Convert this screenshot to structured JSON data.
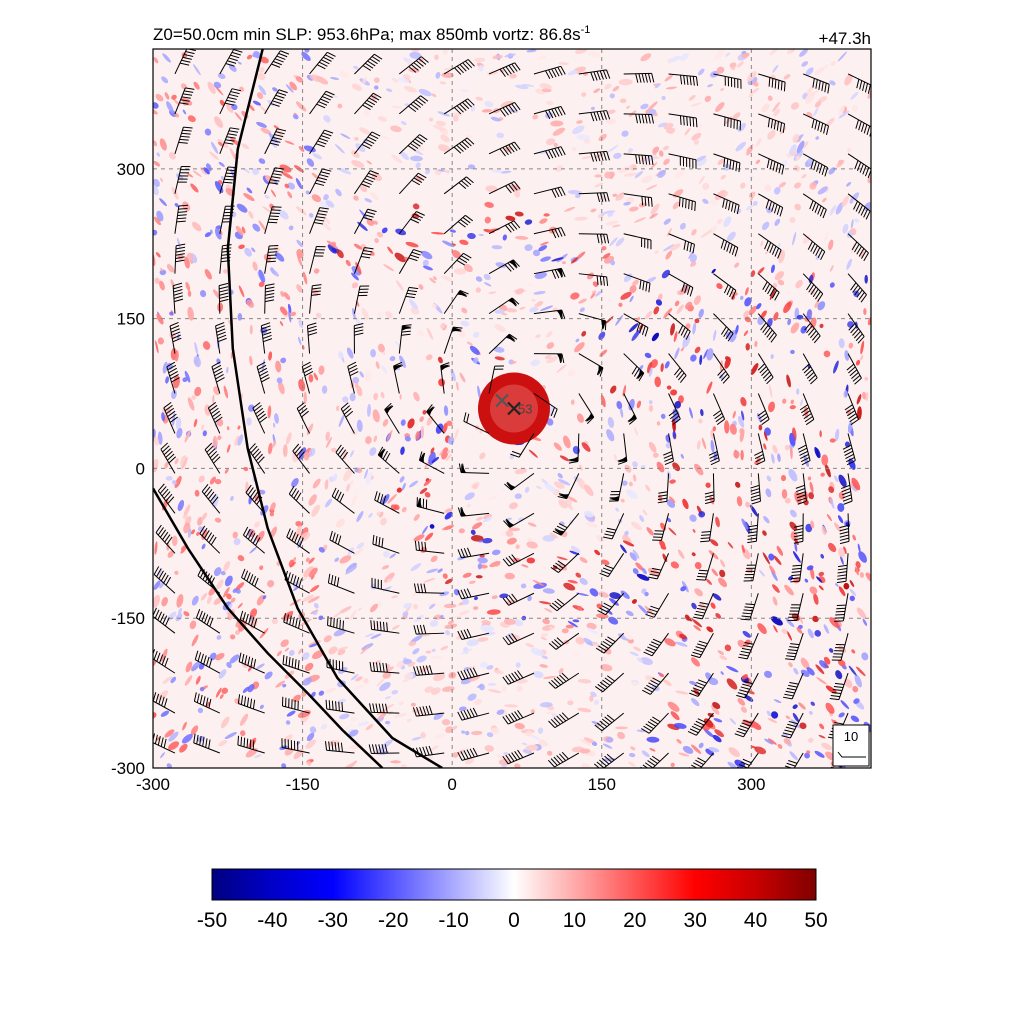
{
  "chart_data": [
    {
      "type": "heatmap",
      "title_left": "Z0=50.0cm  min SLP: 953.6hPa; max 850mb vortz:  86.8s",
      "title_left_sup": "-1",
      "title_right": "+47.3h",
      "xlim": [
        -300,
        420
      ],
      "ylim": [
        -300,
        420
      ],
      "x_ticks": [
        -300,
        -150,
        0,
        150,
        300
      ],
      "y_ticks": [
        -300,
        -150,
        0,
        150,
        300
      ],
      "x_tick_labels": [
        "-300",
        "-150",
        "0",
        "150",
        "300"
      ],
      "y_tick_labels": [
        "-300",
        "-150",
        "0",
        "150",
        "300"
      ],
      "grid": true,
      "grid_style": "dashed",
      "field": "850mb relative vorticity",
      "field_range": [
        -50,
        50
      ],
      "vortex_center": [
        62,
        60
      ],
      "max_vorticity_marker": [
        50,
        68
      ],
      "center_label": "53",
      "wind_barbs": true,
      "wind_reference_label": "10",
      "wind_reference_position": "bottom-right",
      "boundary_lines": [
        {
          "points": [
            [
              -190,
              420
            ],
            [
              -215,
              320
            ],
            [
              -225,
              220
            ],
            [
              -220,
              120
            ],
            [
              -205,
              20
            ],
            [
              -185,
              -60
            ],
            [
              -155,
              -140
            ],
            [
              -115,
              -210
            ],
            [
              -60,
              -270
            ],
            [
              -10,
              -300
            ]
          ]
        },
        {
          "points": [
            [
              -300,
              -20
            ],
            [
              -265,
              -80
            ],
            [
              -225,
              -140
            ],
            [
              -185,
              -185
            ],
            [
              -145,
              -225
            ],
            [
              -110,
              -262
            ],
            [
              -70,
              -300
            ]
          ]
        }
      ]
    },
    {
      "type": "colorbar",
      "min": -50,
      "max": 50,
      "tick_values": [
        -50,
        -40,
        -30,
        -20,
        -10,
        0,
        10,
        20,
        30,
        40,
        50
      ],
      "tick_labels": [
        "-50",
        "-40",
        "-30",
        "-20",
        "-10",
        "0",
        "10",
        "20",
        "30",
        "40",
        "50"
      ],
      "colormap_stops": [
        "#000080",
        "#0000ff",
        "#ffffff",
        "#ff0000",
        "#800000"
      ]
    }
  ],
  "colors": {
    "grid": "#888888",
    "barb": "#000000",
    "strong_red": "#dd0000",
    "strong_blue": "#1a33dd"
  }
}
